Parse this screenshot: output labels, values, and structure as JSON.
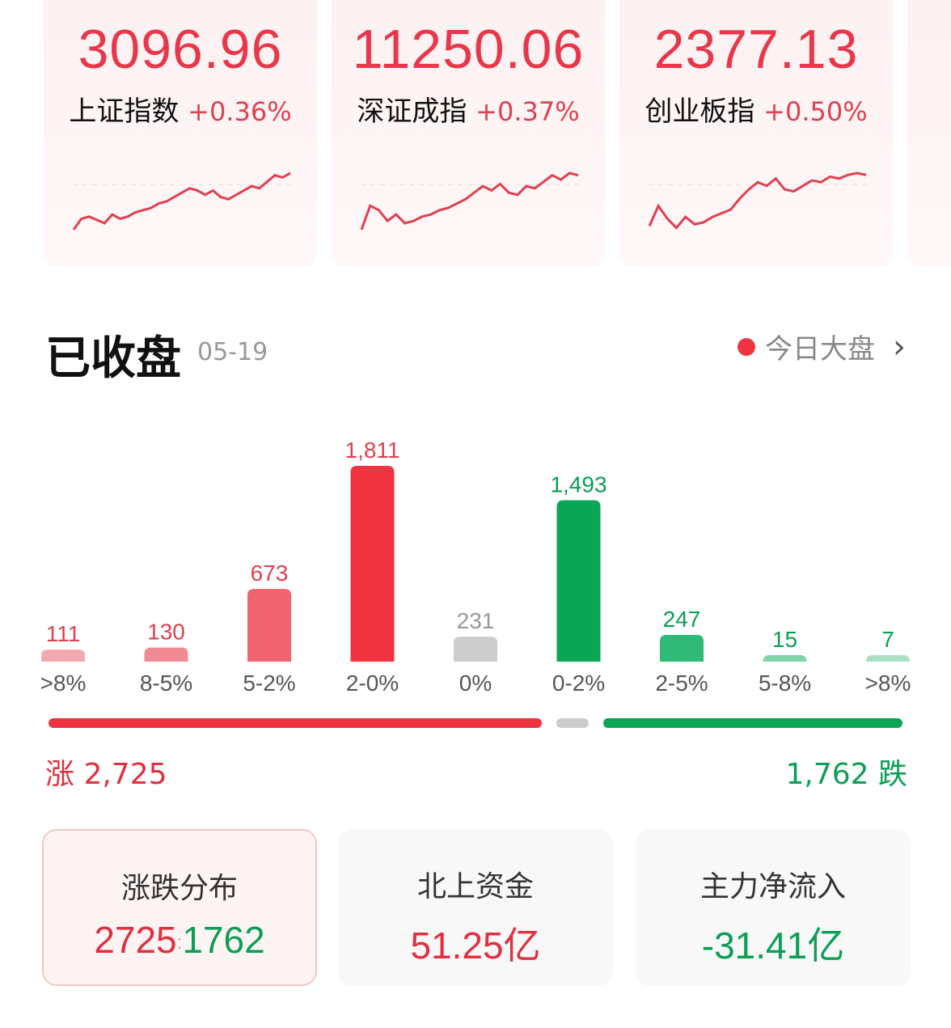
{
  "indices": [
    {
      "value": "3096.96",
      "name": "上证指数",
      "change": "+0.36%",
      "spark": [
        0,
        10,
        12,
        9,
        6,
        14,
        10,
        12,
        16,
        18,
        20,
        24,
        26,
        30,
        34,
        38,
        36,
        32,
        36,
        30,
        28,
        32,
        36,
        40,
        38,
        44,
        50,
        48,
        52
      ]
    },
    {
      "value": "11250.06",
      "name": "深证成指",
      "change": "+0.37%",
      "spark": [
        0,
        22,
        18,
        8,
        14,
        6,
        8,
        12,
        14,
        18,
        20,
        24,
        28,
        34,
        40,
        36,
        42,
        34,
        32,
        40,
        38,
        44,
        50,
        46,
        52,
        50
      ]
    },
    {
      "value": "2377.13",
      "name": "创业板指",
      "change": "+0.50%",
      "spark": [
        4,
        26,
        12,
        2,
        14,
        6,
        8,
        14,
        18,
        22,
        34,
        44,
        52,
        48,
        56,
        44,
        42,
        48,
        54,
        52,
        58,
        56,
        60,
        62,
        60
      ]
    }
  ],
  "header": {
    "title": "已收盘",
    "date": "05-19",
    "link": "今日大盘"
  },
  "colors": {
    "up": "#ef3340",
    "down": "#0aa555",
    "flat": "#cccccc"
  },
  "chart_data": {
    "type": "bar",
    "categories": [
      ">8%",
      "8-5%",
      "5-2%",
      "2-0%",
      "0%",
      "0-2%",
      "2-5%",
      "5-8%",
      ">8%"
    ],
    "values": [
      111,
      130,
      673,
      1811,
      231,
      1493,
      247,
      15,
      7
    ],
    "labels": [
      "111",
      "130",
      "673",
      "1,811",
      "231",
      "1,493",
      "247",
      "15",
      "7"
    ],
    "colors": [
      "#f4a9b0",
      "#f28a93",
      "#f0646f",
      "#ef3340",
      "#cccccc",
      "#0aa555",
      "#2fba78",
      "#7fd3a8",
      "#a8e0c4"
    ],
    "label_colors": [
      "#e0404f",
      "#e0404f",
      "#e0404f",
      "#e0404f",
      "#999999",
      "#0a9f54",
      "#0a9f54",
      "#0a9f54",
      "#0a9f54"
    ]
  },
  "summary": {
    "up_label": "涨 2,725",
    "down_label": "1,762 跌",
    "up": 2725,
    "down": 1762
  },
  "stats": [
    {
      "title": "涨跌分布",
      "up": "2725",
      "sep": ":",
      "down": "1762"
    },
    {
      "title": "北上资金",
      "value": "51.25亿"
    },
    {
      "title": "主力净流入",
      "value": "-31.41亿"
    }
  ]
}
